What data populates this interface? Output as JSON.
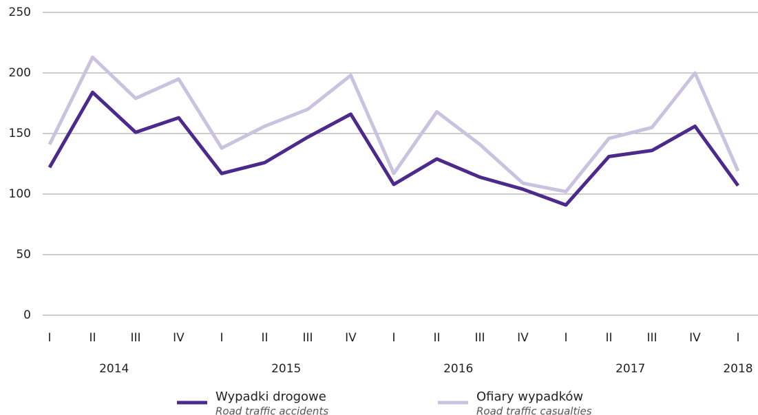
{
  "chart_data": {
    "type": "line",
    "categories": [
      "I",
      "II",
      "III",
      "IV",
      "I",
      "II",
      "III",
      "IV",
      "I",
      "II",
      "III",
      "IV",
      "I",
      "II",
      "III",
      "IV",
      "I"
    ],
    "year_groups": [
      "2014",
      "2015",
      "2016",
      "2017",
      "2018"
    ],
    "series": [
      {
        "name": "Wypadki drogowe",
        "subname": "Road traffic accidents",
        "color": "#4b2a8c",
        "values": [
          122,
          184,
          151,
          163,
          117,
          126,
          147,
          166,
          108,
          129,
          114,
          104,
          91,
          131,
          136,
          156,
          107
        ]
      },
      {
        "name": "Ofiary wypadków",
        "subname": "Road traffic casualties",
        "color": "#c9c3e0",
        "values": [
          141,
          213,
          179,
          195,
          138,
          156,
          170,
          198,
          117,
          168,
          141,
          109,
          102,
          146,
          155,
          200,
          119
        ]
      }
    ],
    "ylim": [
      0,
      250
    ],
    "yticks": [
      0,
      50,
      100,
      150,
      200,
      250
    ],
    "grid": true,
    "legend": "bottom"
  }
}
